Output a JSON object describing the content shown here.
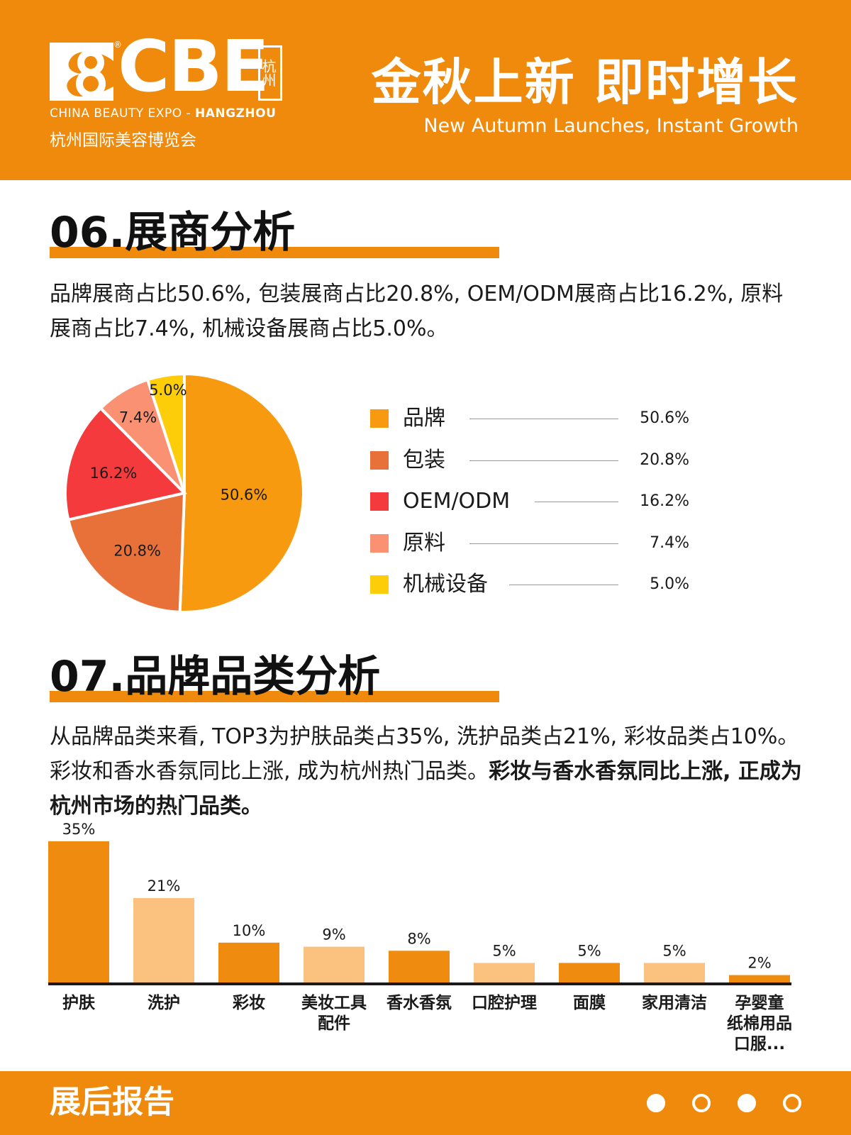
{
  "header": {
    "logo_text": "CBE",
    "logo_reg": "®",
    "logo_city": "杭州",
    "logo_en_prefix": "CHINA BEAUTY EXPO - ",
    "logo_en_city": "HANGZHOU",
    "logo_cn": "杭州国际美容博览会",
    "slogan_cn": "金秋上新 即时增长",
    "slogan_en": "New Autumn Launches, Instant Growth"
  },
  "section06": {
    "title": "06.展商分析",
    "paragraph": "品牌展商占比50.6%, 包装展商占比20.8%, OEM/ODM展商占比16.2%, 原料展商占比7.4%, 机械设备展商占比5.0%。"
  },
  "section07": {
    "title": "07.品牌品类分析",
    "paragraph_normal": "从品牌品类来看, TOP3为护肤品类占35%, 洗护品类占21%, 彩妆品类占10%。彩妆和香水香氛同比上涨, 成为杭州热门品类。",
    "paragraph_bold": "彩妆与香水香氛同比上涨, 正成为杭州市场的热门品类。"
  },
  "footer": {
    "title": "展后报告",
    "dots": [
      true,
      false,
      true,
      false
    ]
  },
  "colors": {
    "accent": "#f08a0c",
    "bar_dark": "#ef8c0f",
    "bar_light": "#fbc17f"
  },
  "chart_data": [
    {
      "type": "pie",
      "categories": [
        "品牌",
        "包装",
        "OEM/ODM",
        "原料",
        "机械设备"
      ],
      "values": [
        50.6,
        20.8,
        16.2,
        7.4,
        5.0
      ],
      "labels": [
        "50.6%",
        "20.8%",
        "16.2%",
        "7.4%",
        "5.0%"
      ],
      "colors": [
        "#f79a10",
        "#e8713a",
        "#f53a3e",
        "#fa9173",
        "#fdcd0a"
      ],
      "legend": "right"
    },
    {
      "type": "bar",
      "categories": [
        "护肤",
        "洗护",
        "彩妆",
        "美妆工具\n配件",
        "香水香氛",
        "口腔护理",
        "面膜",
        "家用清洁",
        "孕婴童\n纸棉用品\n口服..."
      ],
      "values": [
        35,
        21,
        10,
        9,
        8,
        5,
        5,
        5,
        2
      ],
      "labels": [
        "35%",
        "21%",
        "10%",
        "9%",
        "8%",
        "5%",
        "5%",
        "5%",
        "2%"
      ],
      "ylim": [
        0,
        35
      ]
    }
  ]
}
